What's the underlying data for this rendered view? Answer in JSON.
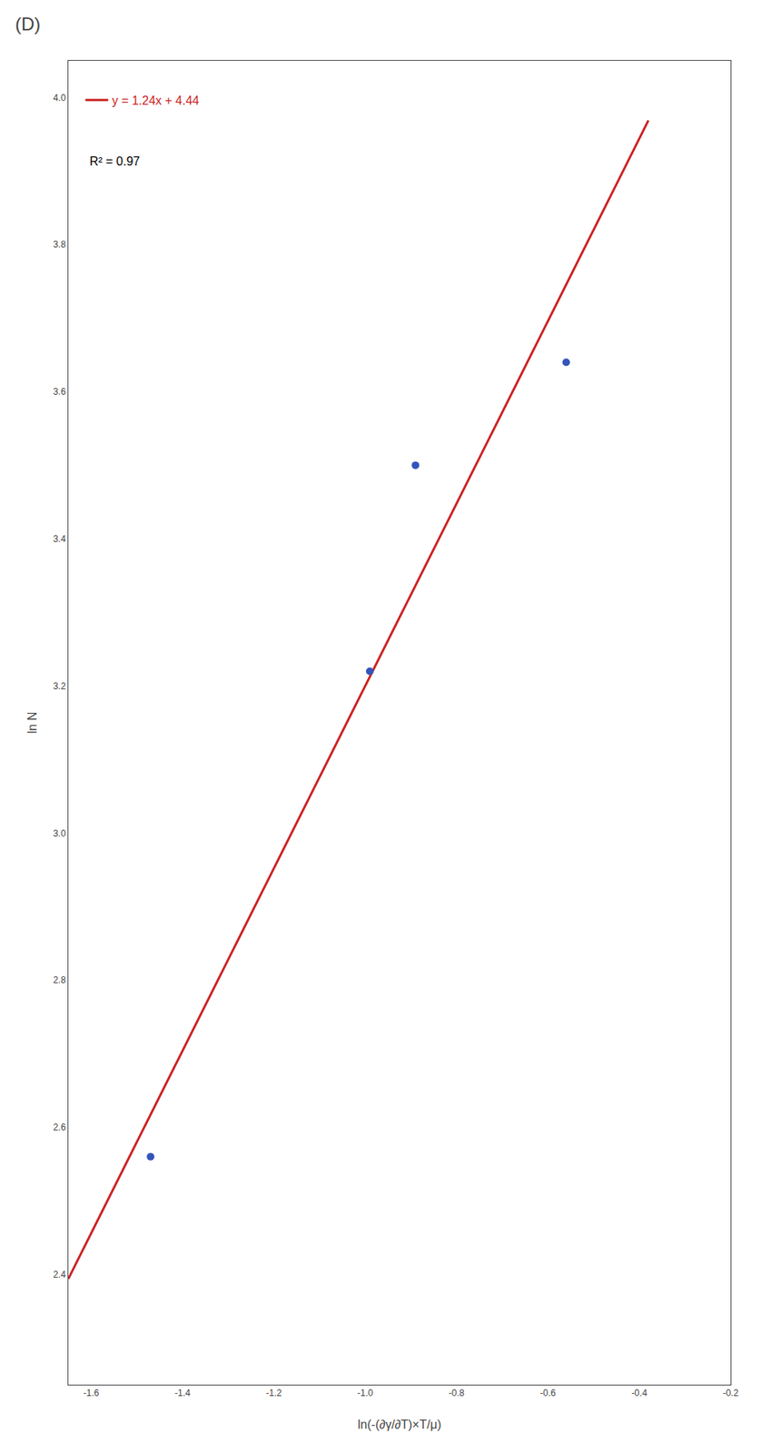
{
  "chart_data": {
    "type": "scatter",
    "title": "(D)",
    "x_label": "ln(-(∂γ/∂T)×T/μ)",
    "y_label": "ln N",
    "series": [
      {
        "name": "y = 1.24x + 4.44",
        "type": "line",
        "color": "#cc2222",
        "x": [
          -1.65,
          -0.38
        ],
        "values": [
          2.394,
          3.9688
        ]
      },
      {
        "type": "scatter",
        "color": "#3355bb",
        "x": [
          -1.47,
          -0.99,
          -0.89,
          -0.56
        ],
        "values": [
          2.56,
          3.22,
          3.5,
          3.64
        ]
      }
    ],
    "annotations": [
      {
        "text": "R² = 0.97"
      }
    ],
    "xlim": [
      -1.65,
      -0.2
    ],
    "xticks": [
      -1.6,
      -1.4,
      -1.2,
      {
        "value": -1.0,
        "label": "-1.0"
      },
      -0.8,
      -0.6,
      -0.4,
      -0.2
    ],
    "ylim": [
      2.25,
      4.05
    ],
    "yticks": [
      2.4,
      2.6,
      2.8,
      {
        "value": 3.0,
        "label": "3.0"
      },
      3.2,
      3.4,
      3.6,
      3.8,
      {
        "value": 4.0,
        "label": "4.0"
      }
    ],
    "grid": false,
    "legend": "upper left"
  }
}
